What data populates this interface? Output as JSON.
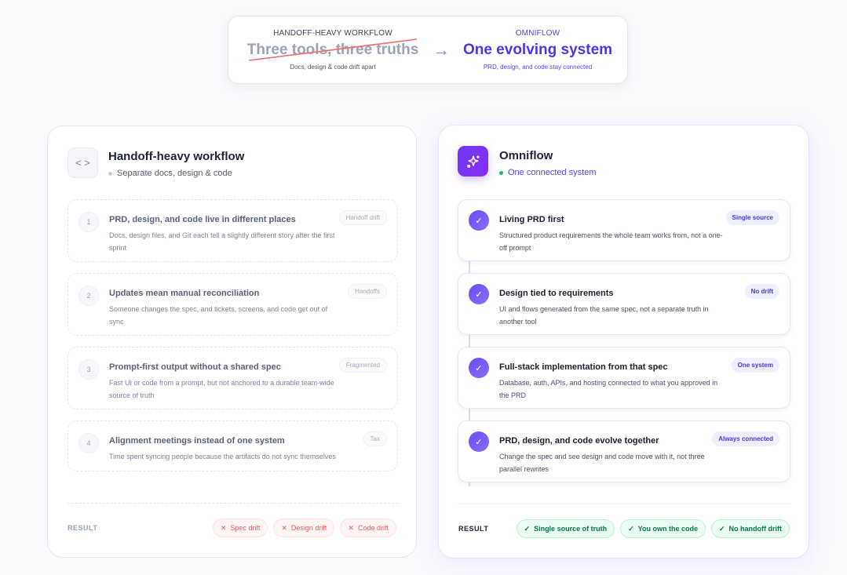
{
  "banner": {
    "left": {
      "caption": "HANDOFF-HEAVY WORKFLOW",
      "title": "Three tools, three truths",
      "subtitle": "Docs, design & code drift apart"
    },
    "right": {
      "caption": "OMNIFLOW",
      "title": "One evolving system",
      "subtitle": "PRD, design, and code stay connected"
    }
  },
  "handoff": {
    "icon": "code-brackets-icon",
    "title": "Handoff-heavy workflow",
    "subtitle": "Separate docs, design & code",
    "items": [
      {
        "num": "1",
        "title": "PRD, design, and code live in different places",
        "desc": "Docs, design files, and Git each tell a slightly different story after the first sprint",
        "tag": "Handoff drift"
      },
      {
        "num": "2",
        "title": "Updates mean manual reconciliation",
        "desc": "Someone changes the spec, and tickets, screens, and code get out of sync",
        "tag": "Handoffs"
      },
      {
        "num": "3",
        "title": "Prompt-first output without a shared spec",
        "desc": "Fast UI or code from a prompt, but not anchored to a durable team-wide source of truth",
        "tag": "Fragmented"
      },
      {
        "num": "4",
        "title": "Alignment meetings instead of one system",
        "desc": "Time spent syncing people because the artifacts do not sync themselves",
        "tag": "Tax"
      }
    ],
    "result_label": "RESULT",
    "results": [
      "Spec drift",
      "Design drift",
      "Code drift"
    ]
  },
  "omniflow": {
    "icon": "sparkles-icon",
    "title": "Omniflow",
    "subtitle": "One connected system",
    "items": [
      {
        "title": "Living PRD first",
        "desc": "Structured product requirements the whole team works from, not a one-off prompt",
        "tag": "Single source"
      },
      {
        "title": "Design tied to requirements",
        "desc": "UI and flows generated from the same spec, not a separate truth in another tool",
        "tag": "No drift"
      },
      {
        "title": "Full-stack implementation from that spec",
        "desc": "Database, auth, APIs, and hosting connected to what you approved in the PRD",
        "tag": "One system"
      },
      {
        "title": "PRD, design, and code evolve together",
        "desc": "Change the spec and see design and code move with it, not three parallel rewrites",
        "tag": "Always connected"
      }
    ],
    "result_label": "RESULT",
    "results": [
      "Single source of truth",
      "You own the code",
      "No handoff drift"
    ]
  },
  "colors": {
    "accent": "#5230f0",
    "success": "#067a4a",
    "danger": "#ef5a5a"
  }
}
